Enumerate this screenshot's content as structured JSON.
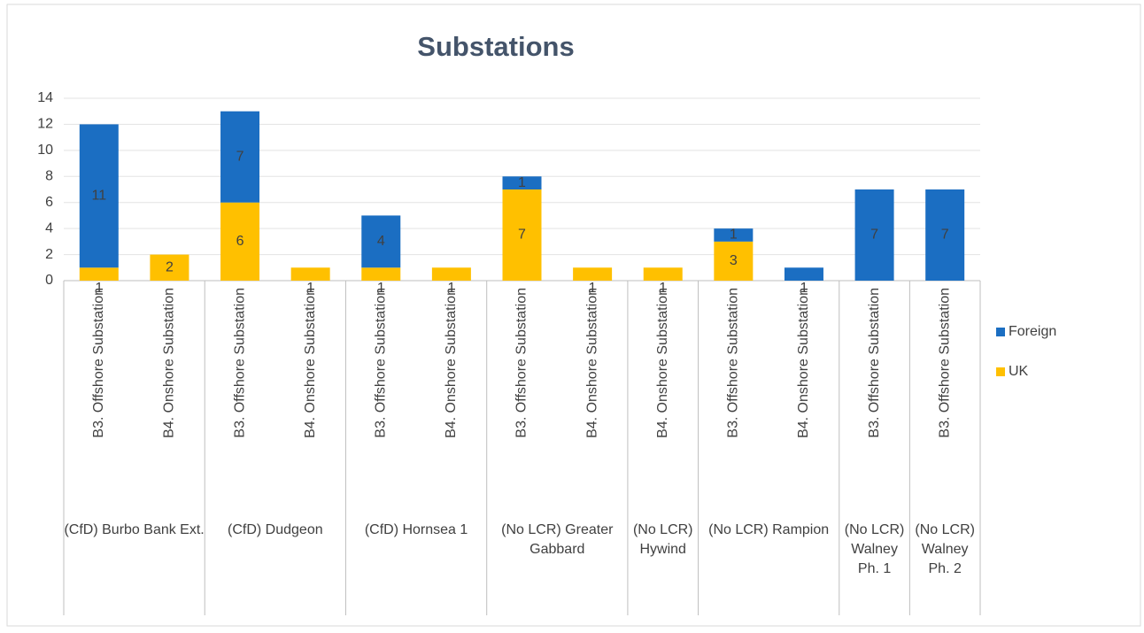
{
  "chart_data": {
    "type": "stacked_bar",
    "title": "Substations",
    "groups": [
      {
        "name": "(CfD) Burbo Bank Ext.",
        "categories": [
          "B3. Offshore Substation",
          "B4. Onshore Substation"
        ]
      },
      {
        "name": "(CfD) Dudgeon",
        "categories": [
          "B3. Offshore Substation",
          "B4. Onshore Substation"
        ]
      },
      {
        "name": "(CfD) Hornsea 1",
        "categories": [
          "B3. Offshore Substation",
          "B4. Onshore Substation"
        ]
      },
      {
        "name": "(No LCR) Greater Gabbard",
        "categories": [
          "B3. Offshore Substation",
          "B4. Onshore Substation"
        ]
      },
      {
        "name": "(No LCR) Hywind",
        "categories": [
          "B4. Onshore Substation"
        ]
      },
      {
        "name": "(No LCR) Rampion",
        "categories": [
          "B3. Offshore Substation",
          "B4. Onshore Substation"
        ]
      },
      {
        "name": "(No LCR) Walney Ph. 1",
        "categories": [
          "B3. Offshore Substation"
        ]
      },
      {
        "name": "(No LCR) Walney Ph. 2",
        "categories": [
          "B3. Offshore Substation"
        ]
      }
    ],
    "series": [
      {
        "name": "UK",
        "color": "#ffc000",
        "values": [
          1,
          2,
          6,
          1,
          1,
          1,
          7,
          1,
          1,
          3,
          null,
          null,
          null
        ]
      },
      {
        "name": "Foreign",
        "color": "#1b6ec2",
        "values": [
          11,
          null,
          7,
          null,
          4,
          null,
          1,
          null,
          null,
          1,
          1,
          7,
          7
        ]
      }
    ],
    "ylim": [
      0,
      14
    ],
    "yticks": [
      0,
      2,
      4,
      6,
      8,
      10,
      12,
      14
    ],
    "grid": true,
    "legend": "right"
  }
}
